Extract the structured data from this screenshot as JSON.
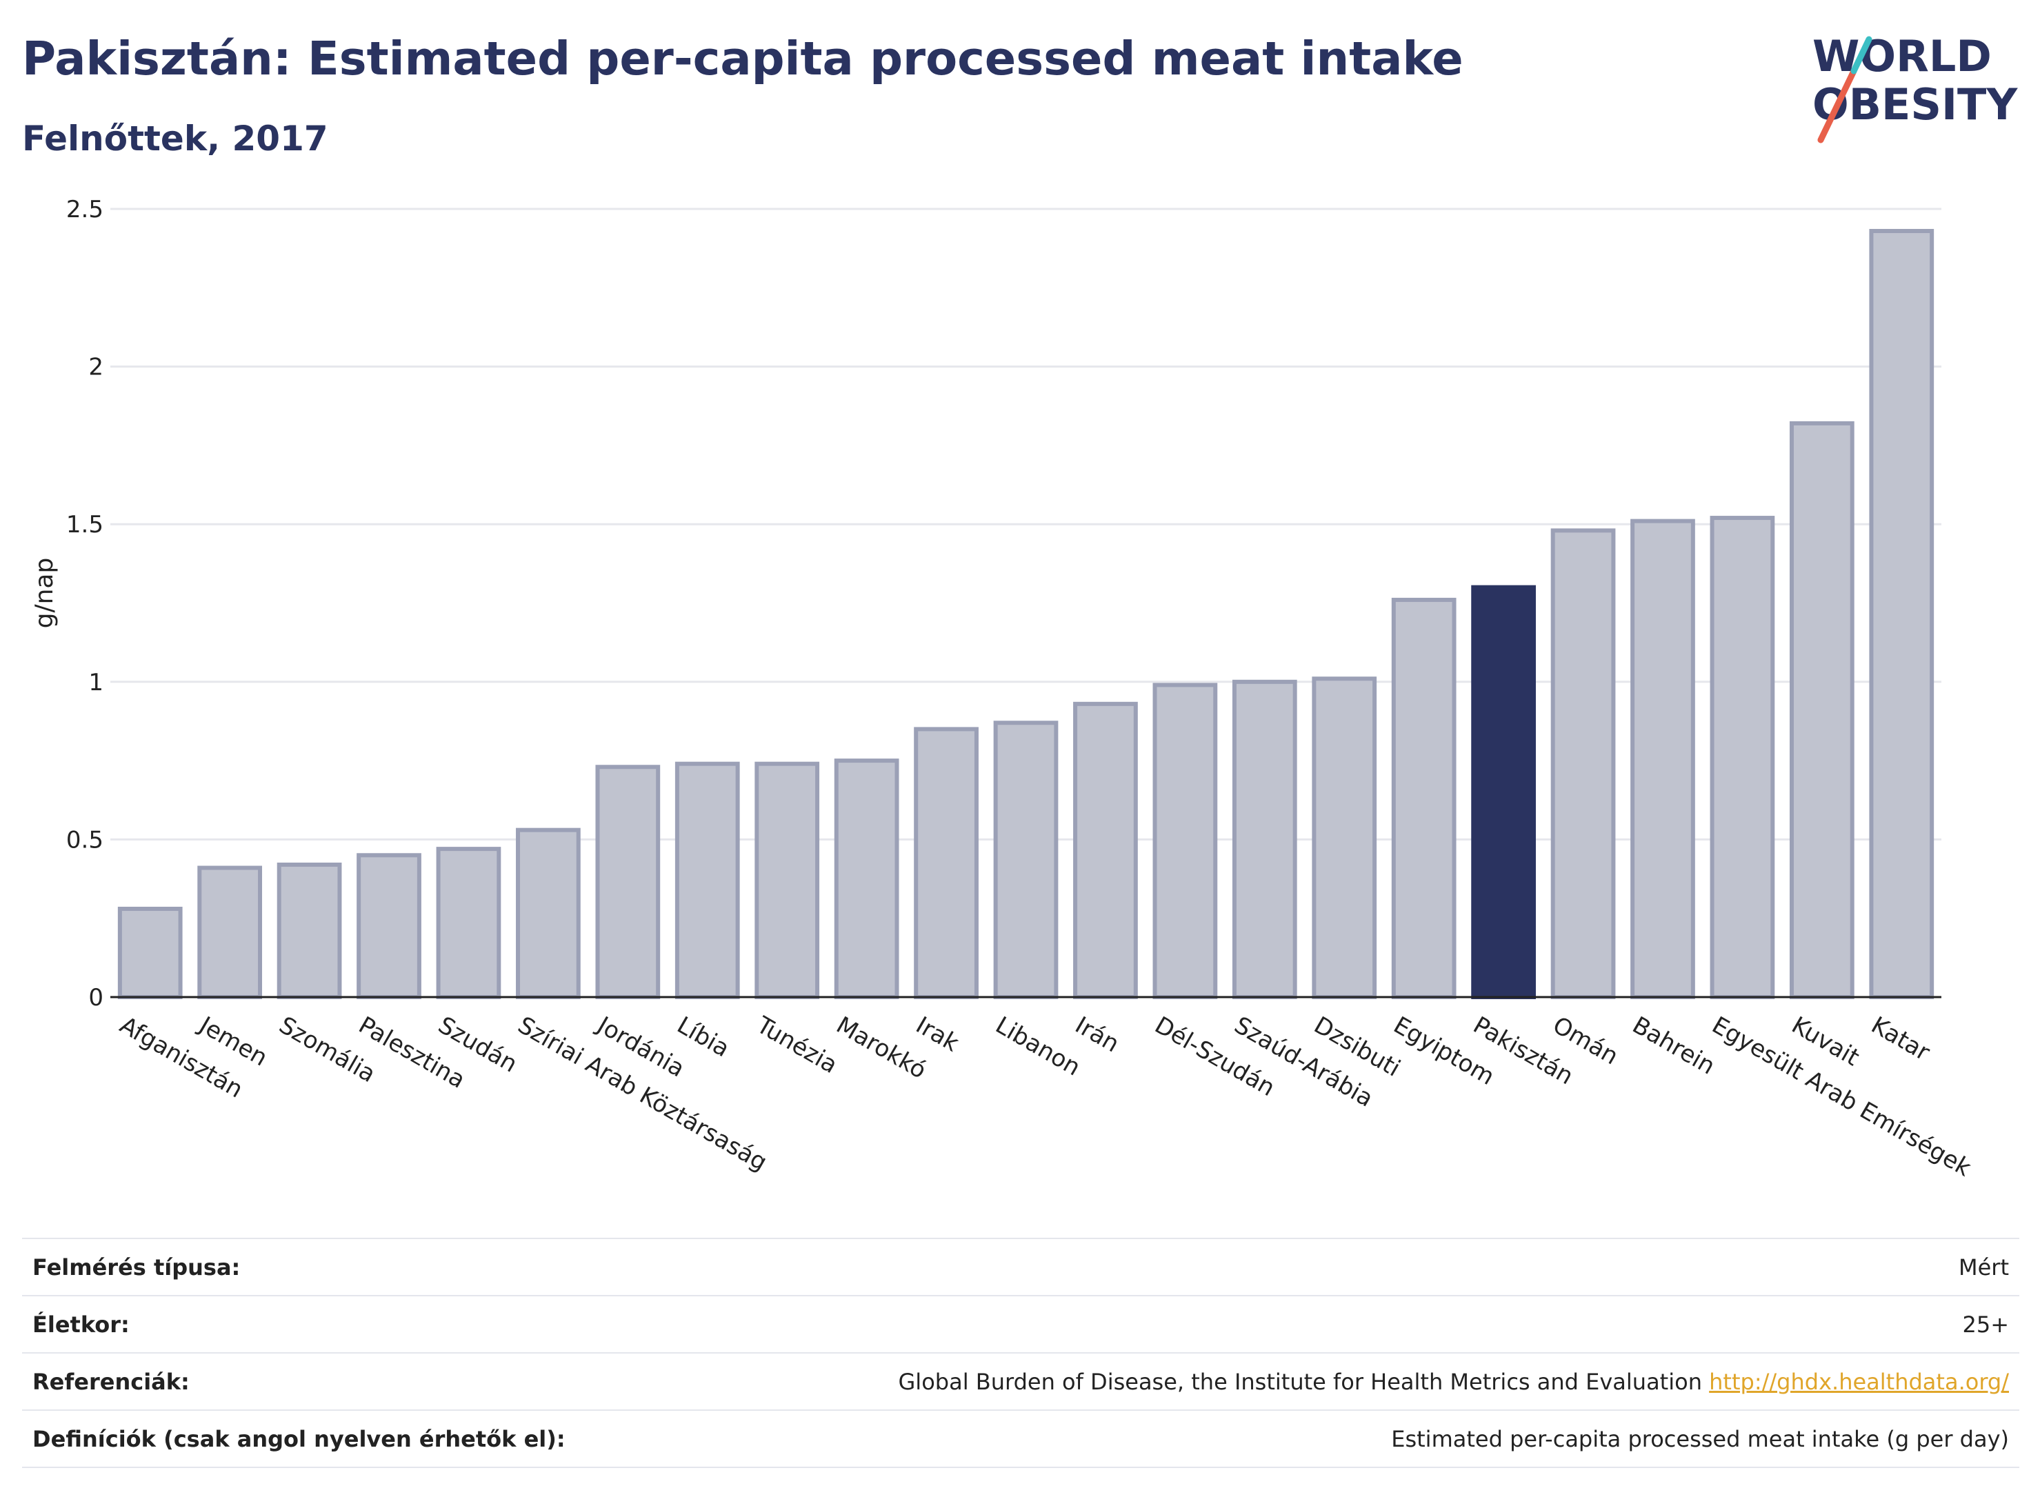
{
  "header": {
    "title": "Pakisztán: Estimated per-capita processed meat intake",
    "subtitle": "Felnőttek, 2017"
  },
  "logo": {
    "line1": "WORLD",
    "line2": "OBESITY",
    "colors": {
      "text": "#2a3360",
      "slash_red": "#e8604a",
      "slash_teal": "#3bbfc4"
    }
  },
  "chart_data": {
    "type": "bar",
    "title": "Pakisztán: Estimated per-capita processed meat intake",
    "subtitle": "Felnőttek, 2017",
    "xlabel": "",
    "ylabel": "g/nap",
    "ylim": [
      0,
      2.5
    ],
    "yticks": [
      0,
      0.5,
      1,
      1.5,
      2,
      2.5
    ],
    "ytick_labels": [
      "0",
      "0.5",
      "1",
      "1.5",
      "2",
      "2.5"
    ],
    "grid": true,
    "highlight": "Pakisztán",
    "colors": {
      "bar": "#c0c3cf",
      "bar_border": "#9ba0b6",
      "highlight": "#2a3360"
    },
    "categories": [
      "Afganisztán",
      "Jemen",
      "Szomália",
      "Palesztina",
      "Szudán",
      "Szíriai Arab Köztársaság",
      "Jordánia",
      "Líbia",
      "Tunézia",
      "Marokkó",
      "Irak",
      "Libanon",
      "Irán",
      "Dél-Szudán",
      "Szaúd-Arábia",
      "Dzsibuti",
      "Egyiptom",
      "Pakisztán",
      "Omán",
      "Bahrein",
      "Egyesült Arab Emírségek",
      "Kuvait",
      "Katar"
    ],
    "values": [
      0.28,
      0.41,
      0.42,
      0.45,
      0.47,
      0.53,
      0.73,
      0.74,
      0.74,
      0.75,
      0.85,
      0.87,
      0.93,
      0.99,
      1.0,
      1.01,
      1.26,
      1.3,
      1.48,
      1.51,
      1.52,
      1.82,
      2.43
    ]
  },
  "info": [
    {
      "label": "Felmérés típusa:",
      "value": "Mért",
      "link": ""
    },
    {
      "label": "Életkor:",
      "value": "25+",
      "link": ""
    },
    {
      "label": "Referenciák:",
      "value": "Global Burden of Disease, the Institute for Health Metrics and Evaluation",
      "link": "http://ghdx.healthdata.org/"
    },
    {
      "label": "Definíciók (csak angol nyelven érhetők el):",
      "value": "Estimated per-capita processed meat intake (g per day)",
      "link": ""
    }
  ]
}
